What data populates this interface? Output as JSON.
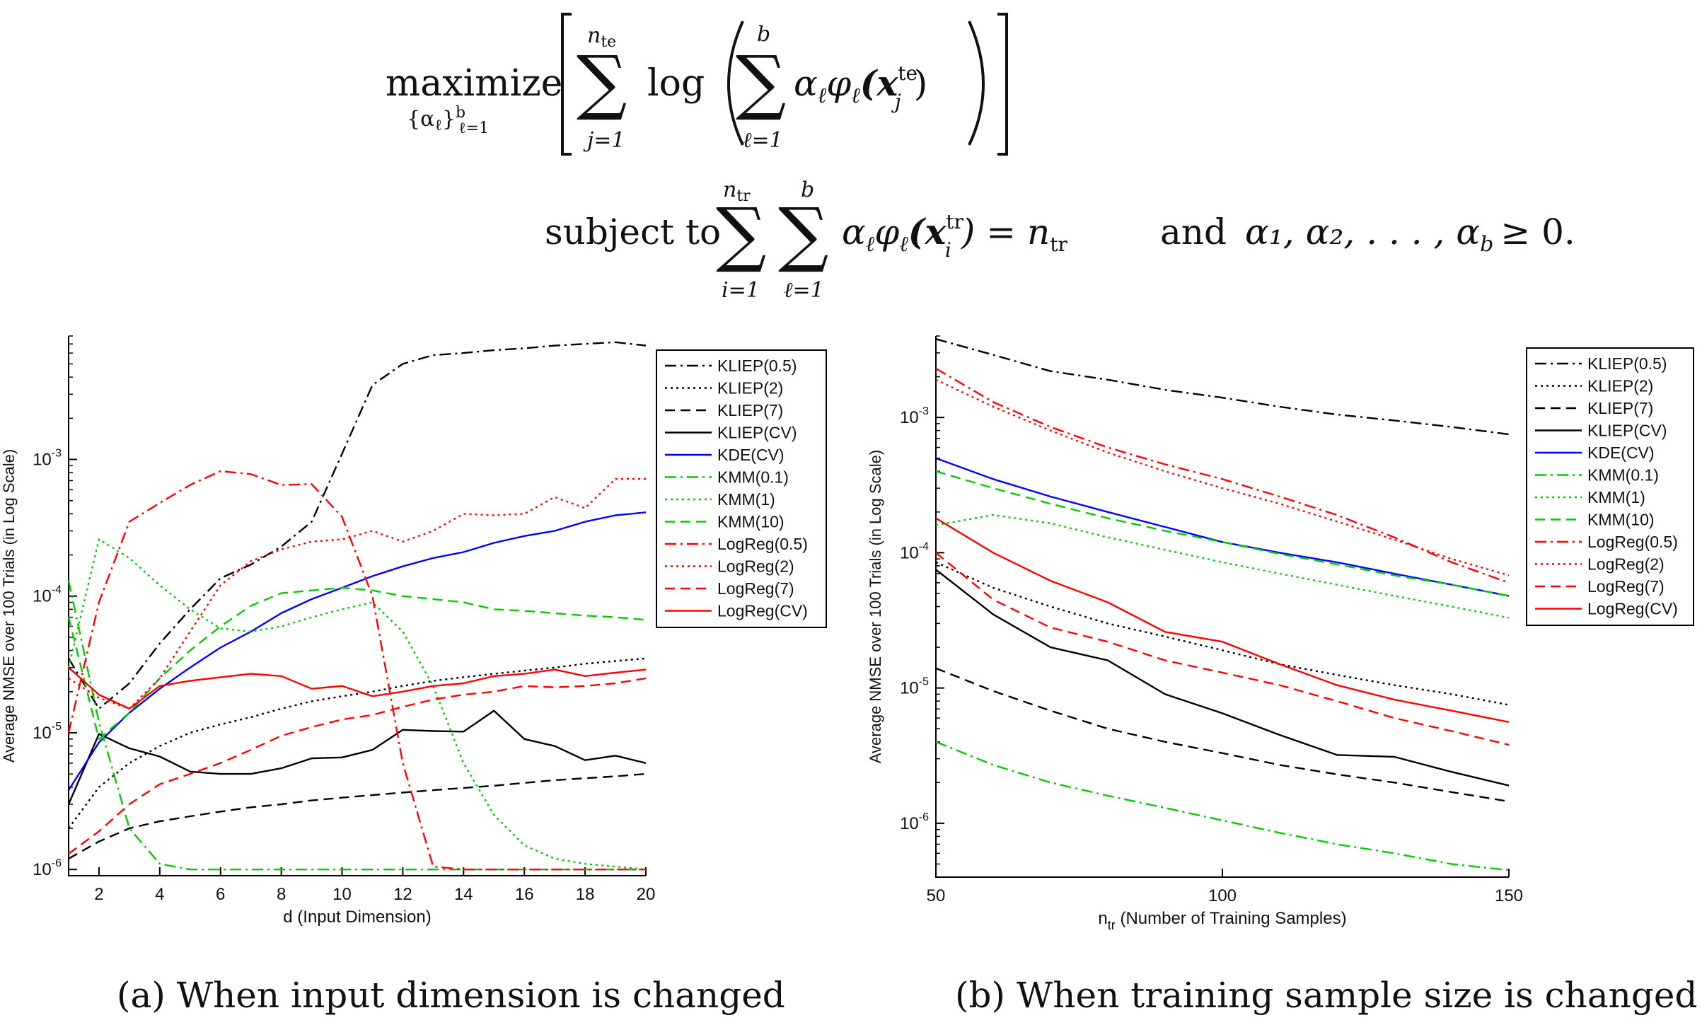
{
  "formula": {
    "objective": {
      "operator": "maximize",
      "operator_sub": "{α",
      "operator_sub2": "ℓ",
      "operator_sub3": "}",
      "operator_sub_up": "b",
      "operator_sub_low": "ℓ=1",
      "outer_sum_top": "n",
      "outer_sum_top_sub": "te",
      "outer_sum_bottom": "j=1",
      "log": "log",
      "inner_sum_top": "b",
      "inner_sum_bottom": "ℓ=1",
      "term": "α",
      "term_sub": "ℓ",
      "phi": "φ",
      "phi_sub": "ℓ",
      "arg": "(x",
      "arg_sup": "te",
      "arg_sub": "j",
      "arg_close": ")"
    },
    "constraint": {
      "lead": "subject to",
      "sum1_top": "n",
      "sum1_top_sub": "tr",
      "sum1_bottom": "i=1",
      "sum2_top": "b",
      "sum2_bottom": "ℓ=1",
      "term": "α",
      "term_sub": "ℓ",
      "phi": "φ",
      "phi_sub": "ℓ",
      "arg": "(x",
      "arg_sup": "tr",
      "arg_sub": "i",
      "arg_close": ") = n",
      "rhs_sub": "tr",
      "and": "and",
      "tail": "α₁, α₂, . . . , α",
      "tail_sub": "b",
      "tail_end": "≥ 0."
    }
  },
  "captions": {
    "a": "(a) When input dimension is changed",
    "b": "(b) When training sample size is changed"
  },
  "styles": {
    "KLIEP(0.5)": {
      "color": "#000000",
      "dash": "dashdot"
    },
    "KLIEP(2)": {
      "color": "#000000",
      "dash": "dotted"
    },
    "KLIEP(7)": {
      "color": "#000000",
      "dash": "dashed"
    },
    "KLIEP(CV)": {
      "color": "#000000",
      "dash": "solid"
    },
    "KDE(CV)": {
      "color": "#0000ff",
      "dash": "solid"
    },
    "KMM(0.1)": {
      "color": "#00cc00",
      "dash": "dashdot"
    },
    "KMM(1)": {
      "color": "#00cc00",
      "dash": "dotted"
    },
    "KMM(10)": {
      "color": "#00cc00",
      "dash": "dashed"
    },
    "LogReg(0.5)": {
      "color": "#ff0000",
      "dash": "dashdot"
    },
    "LogReg(2)": {
      "color": "#ff0000",
      "dash": "dotted"
    },
    "LogReg(7)": {
      "color": "#ff0000",
      "dash": "dashed"
    },
    "LogReg(CV)": {
      "color": "#ff0000",
      "dash": "solid"
    }
  },
  "chart_data": [
    {
      "type": "line",
      "xlabel": "d (Input Dimension)",
      "ylabel": "Average NMSE over 100 Trials (in Log Scale)",
      "yscale": "log",
      "xlim": [
        1,
        20
      ],
      "ylim": [
        9e-07,
        0.008
      ],
      "xticks": [
        2,
        4,
        6,
        8,
        10,
        12,
        14,
        16,
        18,
        20
      ],
      "yticks": [
        1e-06,
        1e-05,
        0.0001,
        0.001
      ],
      "ytick_labels": [
        {
          "base": "10",
          "exp": "-6"
        },
        {
          "base": "10",
          "exp": "-5"
        },
        {
          "base": "10",
          "exp": "-4"
        },
        {
          "base": "10",
          "exp": "-3"
        }
      ],
      "legend_position": "top-right",
      "x": [
        1,
        2,
        3,
        4,
        5,
        6,
        7,
        8,
        9,
        10,
        11,
        12,
        13,
        14,
        15,
        16,
        17,
        18,
        19,
        20
      ],
      "series": [
        {
          "name": "KLIEP(0.5)",
          "values": [
            3.5e-05,
            1.5e-05,
            2.3e-05,
            4.5e-05,
            8e-05,
            0.000135,
            0.00017,
            0.00023,
            0.00035,
            0.0011,
            0.0035,
            0.005,
            0.0058,
            0.006,
            0.0063,
            0.0065,
            0.0068,
            0.007,
            0.0072,
            0.0068
          ]
        },
        {
          "name": "KLIEP(2)",
          "values": [
            2e-06,
            4e-06,
            6e-06,
            8e-06,
            1e-05,
            1.15e-05,
            1.3e-05,
            1.5e-05,
            1.7e-05,
            1.85e-05,
            2e-05,
            2.2e-05,
            2.4e-05,
            2.55e-05,
            2.7e-05,
            2.85e-05,
            3e-05,
            3.2e-05,
            3.35e-05,
            3.5e-05
          ]
        },
        {
          "name": "KLIEP(7)",
          "values": [
            1.2e-06,
            1.6e-06,
            2e-06,
            2.25e-06,
            2.45e-06,
            2.65e-06,
            2.85e-06,
            3e-06,
            3.2e-06,
            3.35e-06,
            3.5e-06,
            3.65e-06,
            3.8e-06,
            3.95e-06,
            4.1e-06,
            4.3e-06,
            4.5e-06,
            4.65e-06,
            4.8e-06,
            5e-06
          ]
        },
        {
          "name": "KLIEP(CV)",
          "values": [
            3e-06,
            9.8e-06,
            7.7e-06,
            6.7e-06,
            5.2e-06,
            5e-06,
            5e-06,
            5.5e-06,
            6.5e-06,
            6.6e-06,
            7.5e-06,
            1.05e-05,
            1.03e-05,
            1.02e-05,
            1.45e-05,
            9e-06,
            8e-06,
            6.3e-06,
            6.8e-06,
            6e-06
          ]
        },
        {
          "name": "KDE(CV)",
          "values": [
            3.8e-06,
            8.5e-06,
            1.4e-05,
            2.1e-05,
            3e-05,
            4.2e-05,
            5.5e-05,
            7.5e-05,
            9.5e-05,
            0.000115,
            0.00014,
            0.000165,
            0.00019,
            0.00021,
            0.000245,
            0.000275,
            0.0003,
            0.00035,
            0.00039,
            0.00041
          ]
        },
        {
          "name": "KMM(0.1)",
          "values": [
            0.00013,
            1.2e-05,
            2e-06,
            1.1e-06,
            1e-06,
            1e-06,
            1e-06,
            1e-06,
            1e-06,
            1e-06,
            1e-06,
            1e-06,
            1e-06,
            1e-06,
            1e-06,
            1e-06,
            1e-06,
            1e-06,
            1e-06,
            1e-06
          ]
        },
        {
          "name": "KMM(1)",
          "values": [
            3e-05,
            0.00026,
            0.00019,
            0.00012,
            8e-05,
            5.8e-05,
            5.5e-05,
            6e-05,
            7e-05,
            8e-05,
            9e-05,
            5.5e-05,
            2.2e-05,
            6e-06,
            2.5e-06,
            1.5e-06,
            1.2e-06,
            1.1e-06,
            1.05e-06,
            1e-06
          ]
        },
        {
          "name": "KMM(10)",
          "values": [
            7e-05,
            9e-06,
            1.4e-05,
            2.5e-05,
            4e-05,
            6e-05,
            8.5e-05,
            0.000105,
            0.00011,
            0.000115,
            0.00011,
            0.0001,
            9.5e-05,
            9e-05,
            8e-05,
            7.8e-05,
            7.5e-05,
            7.2e-05,
            7e-05,
            6.7e-05
          ]
        },
        {
          "name": "LogReg(0.5)",
          "values": [
            1e-05,
            9e-05,
            0.00035,
            0.00048,
            0.00065,
            0.00082,
            0.00078,
            0.00065,
            0.00066,
            0.00038,
            0.0001,
            6e-06,
            1.05e-06,
            1e-06,
            1e-06,
            1e-06,
            1e-06,
            1e-06,
            1e-06,
            1e-06
          ]
        },
        {
          "name": "LogReg(2)",
          "values": [
            2.5e-05,
            1.8e-05,
            1.5e-05,
            2.5e-05,
            5.5e-05,
            0.00012,
            0.00018,
            0.00022,
            0.00025,
            0.00026,
            0.0003,
            0.00025,
            0.0003,
            0.0004,
            0.00039,
            0.0004,
            0.00053,
            0.00044,
            0.00072,
            0.00072
          ]
        },
        {
          "name": "LogReg(7)",
          "values": [
            1.3e-06,
            1.9e-06,
            3e-06,
            4.2e-06,
            5e-06,
            6e-06,
            7.5e-06,
            9.5e-06,
            1.1e-05,
            1.25e-05,
            1.35e-05,
            1.55e-05,
            1.75e-05,
            1.9e-05,
            2e-05,
            2.2e-05,
            2.15e-05,
            2.2e-05,
            2.3e-05,
            2.5e-05
          ]
        },
        {
          "name": "LogReg(CV)",
          "values": [
            3e-05,
            1.9e-05,
            1.5e-05,
            2.2e-05,
            2.4e-05,
            2.55e-05,
            2.7e-05,
            2.6e-05,
            2.1e-05,
            2.2e-05,
            1.85e-05,
            2e-05,
            2.2e-05,
            2.3e-05,
            2.6e-05,
            2.7e-05,
            2.9e-05,
            2.6e-05,
            2.75e-05,
            2.9e-05
          ]
        }
      ]
    },
    {
      "type": "line",
      "xlabel": "n",
      "xlabel_sub": "tr",
      "xlabel_rest": " (Number of Training Samples)",
      "ylabel": "Average NMSE over 100 Trials (in Log Scale)",
      "yscale": "log",
      "xlim": [
        50,
        150
      ],
      "ylim": [
        4e-07,
        0.004
      ],
      "xticks": [
        50,
        100,
        150
      ],
      "yticks": [
        1e-06,
        1e-05,
        0.0001,
        0.001
      ],
      "ytick_labels": [
        {
          "base": "10",
          "exp": "-6"
        },
        {
          "base": "10",
          "exp": "-5"
        },
        {
          "base": "10",
          "exp": "-4"
        },
        {
          "base": "10",
          "exp": "-3"
        }
      ],
      "legend_position": "top-right",
      "x": [
        50,
        60,
        70,
        80,
        90,
        100,
        110,
        120,
        130,
        140,
        150
      ],
      "series": [
        {
          "name": "KLIEP(0.5)",
          "values": [
            0.0038,
            0.0029,
            0.0022,
            0.0019,
            0.0016,
            0.0014,
            0.0012,
            0.00105,
            0.00095,
            0.00085,
            0.00075
          ]
        },
        {
          "name": "KLIEP(2)",
          "values": [
            8.5e-05,
            5.5e-05,
            4e-05,
            3e-05,
            2.4e-05,
            1.9e-05,
            1.5e-05,
            1.25e-05,
            1.05e-05,
            9e-06,
            7.5e-06
          ]
        },
        {
          "name": "KLIEP(7)",
          "values": [
            1.4e-05,
            9.5e-06,
            6.8e-06,
            5e-06,
            4e-06,
            3.3e-06,
            2.7e-06,
            2.3e-06,
            2e-06,
            1.7e-06,
            1.45e-06
          ]
        },
        {
          "name": "KLIEP(CV)",
          "values": [
            7.5e-05,
            3.5e-05,
            2e-05,
            1.6e-05,
            9e-06,
            6.5e-06,
            4.5e-06,
            3.2e-06,
            3.1e-06,
            2.4e-06,
            1.9e-06
          ]
        },
        {
          "name": "KDE(CV)",
          "values": [
            0.0005,
            0.00035,
            0.00026,
            0.0002,
            0.000155,
            0.00012,
            0.0001,
            8.5e-05,
            7e-05,
            5.8e-05,
            4.8e-05
          ]
        },
        {
          "name": "KMM(0.1)",
          "values": [
            4e-06,
            2.7e-06,
            2e-06,
            1.6e-06,
            1.3e-06,
            1.05e-06,
            8.5e-07,
            7e-07,
            6e-07,
            5e-07,
            4.5e-07
          ]
        },
        {
          "name": "KMM(1)",
          "values": [
            0.00016,
            0.00019,
            0.000165,
            0.00013,
            0.000105,
            8.5e-05,
            7e-05,
            5.8e-05,
            4.8e-05,
            4e-05,
            3.3e-05
          ]
        },
        {
          "name": "KMM(10)",
          "values": [
            0.0004,
            0.0003,
            0.00023,
            0.00018,
            0.000145,
            0.00012,
            9.8e-05,
            8.2e-05,
            6.8e-05,
            5.8e-05,
            4.8e-05
          ]
        },
        {
          "name": "LogReg(0.5)",
          "values": [
            0.0023,
            0.0013,
            0.00085,
            0.0006,
            0.00045,
            0.00035,
            0.00026,
            0.00019,
            0.00013,
            8.5e-05,
            6e-05
          ]
        },
        {
          "name": "LogReg(2)",
          "values": [
            0.0019,
            0.0012,
            0.0008,
            0.00055,
            0.0004,
            0.0003,
            0.00023,
            0.00017,
            0.000125,
            9e-05,
            6.8e-05
          ]
        },
        {
          "name": "LogReg(7)",
          "values": [
            0.0001,
            4.5e-05,
            2.8e-05,
            2.2e-05,
            1.6e-05,
            1.3e-05,
            1.05e-05,
            8e-06,
            6e-06,
            4.8e-06,
            3.8e-06
          ]
        },
        {
          "name": "LogReg(CV)",
          "values": [
            0.00018,
            0.0001,
            6.2e-05,
            4.3e-05,
            2.6e-05,
            2.2e-05,
            1.5e-05,
            1.05e-05,
            8.2e-06,
            6.8e-06,
            5.6e-06
          ]
        }
      ]
    }
  ]
}
